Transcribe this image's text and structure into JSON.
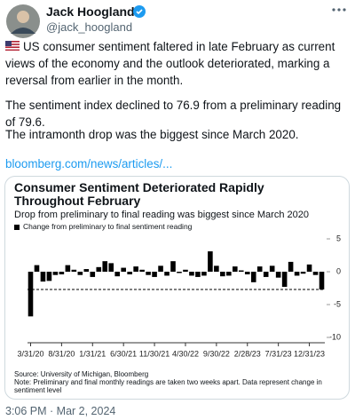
{
  "header": {
    "name": "Jack Hoogland",
    "handle": "@jack_hoogland"
  },
  "body": {
    "paragraphs": [
      "US consumer sentiment faltered in late February as current views of the economy and the outlook deteriorated, marking a reversal from earlier in the month.",
      "The sentiment index declined to 76.9 from a preliminary reading of 79.6.",
      "The intramonth drop was the biggest since March 2020."
    ],
    "link": "bloomberg.com/news/articles/..."
  },
  "chart_data": {
    "type": "bar",
    "title": "Consumer Sentiment Deteriorated Rapidly Throughout February",
    "subtitle": "Drop from preliminary to final reading was biggest since March 2020",
    "categories": [
      "3/31/20",
      null,
      null,
      null,
      null,
      "8/31/20",
      null,
      null,
      null,
      null,
      "1/31/21",
      null,
      null,
      null,
      null,
      "6/30/21",
      null,
      null,
      null,
      null,
      "11/30/21",
      null,
      null,
      null,
      null,
      "4/30/22",
      null,
      null,
      null,
      null,
      "9/30/22",
      null,
      null,
      null,
      null,
      "2/28/23",
      null,
      null,
      null,
      null,
      "7/31/23",
      null,
      null,
      null,
      null,
      "12/31/23",
      null,
      null
    ],
    "series": [
      {
        "name": "Change from preliminary to final sentiment reading",
        "color": "#000000",
        "values": [
          -6.8,
          1.0,
          -1.5,
          -1.4,
          -0.5,
          -0.4,
          1.0,
          0.3,
          -0.5,
          0.4,
          -0.8,
          0.7,
          1.6,
          1.3,
          -0.7,
          0.6,
          -0.4,
          0.8,
          0.3,
          -0.5,
          -0.8,
          0.9,
          -0.6,
          1.6,
          -0.2,
          0.3,
          -0.6,
          -0.8,
          -0.6,
          3.1,
          0.9,
          -0.7,
          -0.6,
          0.8,
          0.2,
          -0.4,
          -1.6,
          0.8,
          -0.8,
          0.9,
          -0.9,
          -2.3,
          1.5,
          -0.6,
          -0.3,
          1.1,
          -0.5,
          -2.7
        ]
      }
    ],
    "reference_line": -2.7,
    "ylim": [
      -10,
      5
    ],
    "yticks": [
      5,
      0,
      -5,
      -10
    ],
    "source": "Source: University of Michigan, Bloomberg",
    "note": "Note: Preliminary and final monthly readings are taken two weeks apart. Data represent change in sentiment level"
  },
  "footer": {
    "timestamp": "3:06 PM · Mar 2, 2024"
  }
}
